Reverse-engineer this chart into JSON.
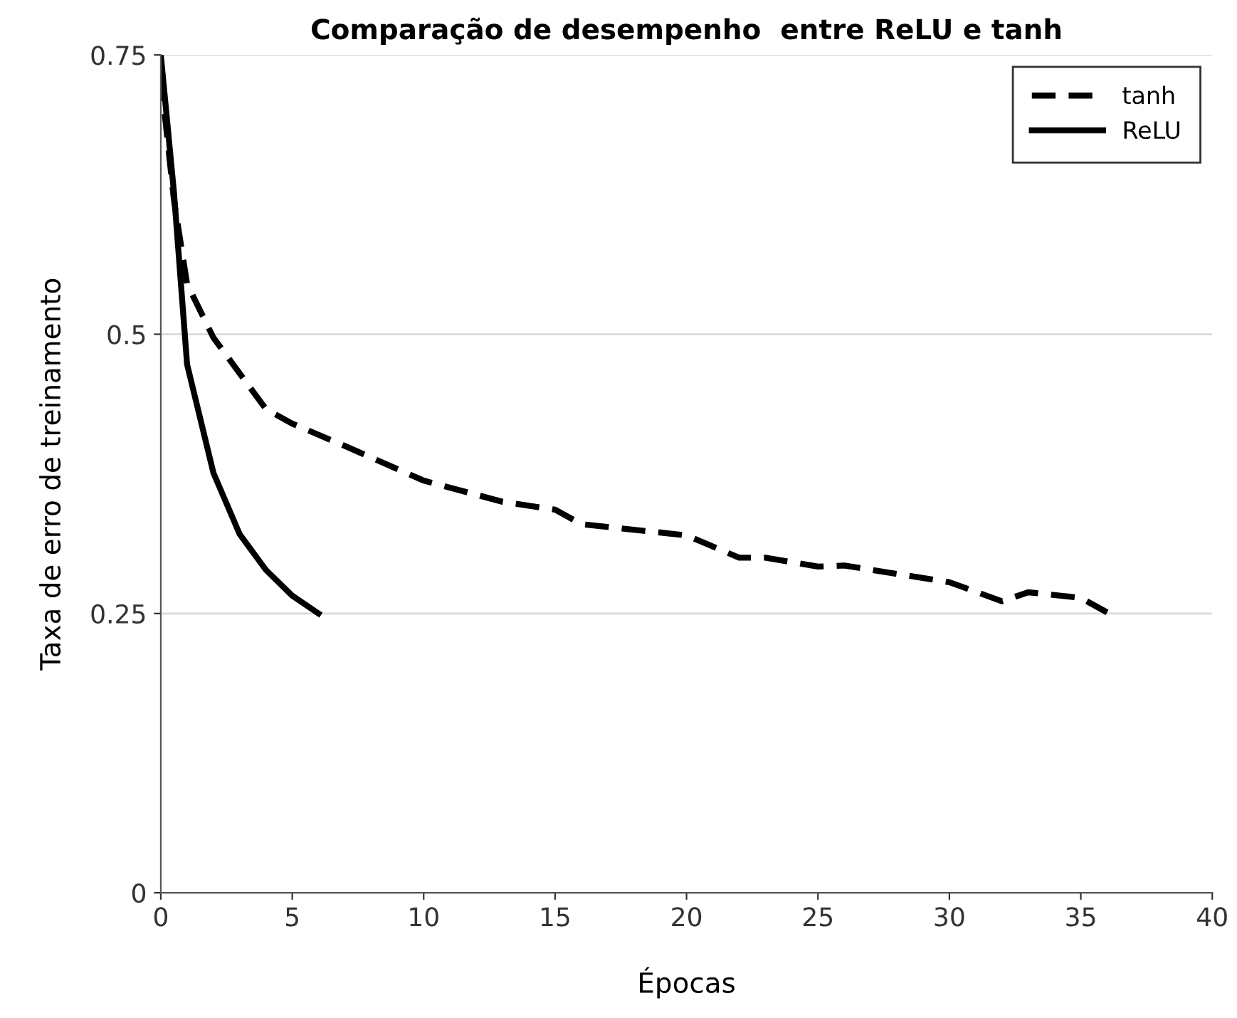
{
  "chart_data": {
    "type": "line",
    "title": "Comparação de desempenho  entre ReLU e tanh",
    "xlabel": "Épocas",
    "ylabel": "Taxa de erro de treinamento",
    "xlim": [
      0,
      40
    ],
    "xticks": [
      0,
      5,
      10,
      15,
      20,
      25,
      30,
      35,
      40
    ],
    "ylim": [
      0,
      0.75
    ],
    "yticks": [
      0,
      0.25,
      0.5,
      0.75
    ],
    "grid": "y",
    "legend": "top right",
    "marker": "none",
    "series": [
      {
        "name": "tanh",
        "color": "#000000",
        "line_style": "dashed",
        "x": [
          0,
          0.5,
          1,
          2,
          4,
          5,
          7,
          10,
          13,
          15,
          16,
          20,
          22,
          23,
          25,
          26,
          30,
          32,
          33,
          35,
          36
        ],
        "values": [
          0.73,
          0.62,
          0.545,
          0.497,
          0.433,
          0.42,
          0.4,
          0.369,
          0.35,
          0.343,
          0.33,
          0.32,
          0.3,
          0.3,
          0.292,
          0.293,
          0.278,
          0.261,
          0.269,
          0.264,
          0.251
        ]
      },
      {
        "name": "ReLU",
        "color": "#000000",
        "line_style": "solid",
        "x": [
          0,
          0.5,
          1,
          2,
          3,
          4,
          5,
          6
        ],
        "values": [
          0.75,
          0.627,
          0.473,
          0.376,
          0.321,
          0.289,
          0.266,
          0.25
        ]
      }
    ]
  }
}
